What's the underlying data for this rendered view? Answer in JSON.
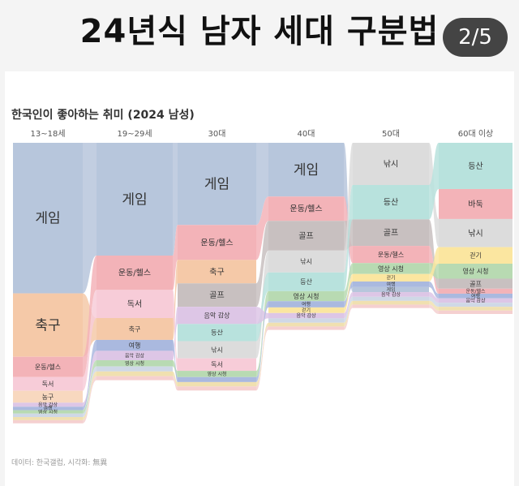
{
  "header": {
    "headline": "24년식 남자 세대 구분법",
    "counter": "2/5"
  },
  "chart_title": "한국인이 좋아하는 취미 (2024 남성)",
  "source": "데이터: 한국갤럽, 시각화: 無異",
  "chart_data": {
    "type": "ranked-stream",
    "title": "한국인이 좋아하는 취미 (2024 남성)",
    "groups": [
      "13~18세",
      "19~29세",
      "30대",
      "40대",
      "50대",
      "60대 이상"
    ],
    "colors": {
      "게임": "#b7c6dc",
      "축구": "#f5c9a8",
      "운동/헬스": "#f3b3b8",
      "독서": "#f7ccd8",
      "농구": "#f8d8bf",
      "골프": "#c8c0c0",
      "낚시": "#dcdcdc",
      "등산": "#b8e2dd",
      "바둑": "#f3b3b8",
      "영상 시청": "#b8dab2",
      "음악 감상": "#ddc6e6",
      "여행": "#aab9df",
      "걷기": "#fbe6a0",
      "기타1": "#cfd8e6",
      "기타2": "#f0e0b0",
      "기타3": "#f5d0d0"
    },
    "stacks": [
      [
        {
          "name": "게임",
          "value": 48.2,
          "label": "게임"
        },
        {
          "name": "축구",
          "value": 20.3,
          "label": "축구"
        },
        {
          "name": "운동/헬스",
          "value": 6.5,
          "label": "운동/헬스"
        },
        {
          "name": "독서",
          "value": 4.4,
          "label": "독서"
        },
        {
          "name": "농구",
          "value": 3.8,
          "label": "농구"
        },
        {
          "name": "음악 감상",
          "value": 1.3,
          "label": "음악 감상"
        },
        {
          "name": "여행",
          "value": 1.1,
          "label": "여행"
        },
        {
          "name": "영상 시청",
          "value": 1.1,
          "label": "영상 시청"
        },
        {
          "name": "기타1",
          "value": 1.1,
          "label": ""
        },
        {
          "name": "기타2",
          "value": 1.0,
          "label": ""
        },
        {
          "name": "기타3",
          "value": 1.0,
          "label": ""
        }
      ],
      [
        {
          "name": "게임",
          "value": 36.1,
          "label": "게임"
        },
        {
          "name": "운동/헬스",
          "value": 11.0,
          "label": "운동/헬스"
        },
        {
          "name": "독서",
          "value": 9.0,
          "label": "독서"
        },
        {
          "name": "축구",
          "value": 7.0,
          "label": "축구"
        },
        {
          "name": "여행",
          "value": 3.5,
          "label": "여행"
        },
        {
          "name": "음악 감상",
          "value": 3.0,
          "label": "음악 감상"
        },
        {
          "name": "영상 시청",
          "value": 2.0,
          "label": "영상 시청"
        },
        {
          "name": "기타1",
          "value": 1.6,
          "label": ""
        },
        {
          "name": "기타2",
          "value": 1.5,
          "label": ""
        },
        {
          "name": "기타3",
          "value": 1.3,
          "label": ""
        }
      ],
      [
        {
          "name": "게임",
          "value": 26.3,
          "label": "게임"
        },
        {
          "name": "운동/헬스",
          "value": 11.2,
          "label": "운동/헬스"
        },
        {
          "name": "축구",
          "value": 7.5,
          "label": "축구"
        },
        {
          "name": "골프",
          "value": 7.5,
          "label": "골프"
        },
        {
          "name": "음악 감상",
          "value": 5.5,
          "label": "음악 감상"
        },
        {
          "name": "등산",
          "value": 5.5,
          "label": "등산"
        },
        {
          "name": "낚시",
          "value": 5.5,
          "label": "낚시"
        },
        {
          "name": "독서",
          "value": 4.0,
          "label": "독서"
        },
        {
          "name": "영상 시청",
          "value": 2.0,
          "label": "영상 시청"
        },
        {
          "name": "여행",
          "value": 1.6,
          "label": ""
        },
        {
          "name": "기타2",
          "value": 1.4,
          "label": ""
        },
        {
          "name": "기타3",
          "value": 1.3,
          "label": ""
        }
      ],
      [
        {
          "name": "게임",
          "value": 17.2,
          "label": "게임"
        },
        {
          "name": "운동/헬스",
          "value": 7.8,
          "label": "운동/헬스"
        },
        {
          "name": "골프",
          "value": 9.5,
          "label": "골프"
        },
        {
          "name": "낚시",
          "value": 7.0,
          "label": "낚시"
        },
        {
          "name": "등산",
          "value": 6.0,
          "label": "등산"
        },
        {
          "name": "영상 시청",
          "value": 3.2,
          "label": "영상 시청"
        },
        {
          "name": "여행",
          "value": 2.0,
          "label": "여행"
        },
        {
          "name": "걷기",
          "value": 1.8,
          "label": "걷기"
        },
        {
          "name": "음악 감상",
          "value": 1.7,
          "label": "음악 감상"
        },
        {
          "name": "기타1",
          "value": 1.4,
          "label": ""
        },
        {
          "name": "기타2",
          "value": 1.2,
          "label": ""
        },
        {
          "name": "기타3",
          "value": 1.1,
          "label": ""
        }
      ],
      [
        {
          "name": "낚시",
          "value": 13.5,
          "label": "낚시"
        },
        {
          "name": "등산",
          "value": 11.0,
          "label": "등산"
        },
        {
          "name": "골프",
          "value": 8.5,
          "label": "골프"
        },
        {
          "name": "운동/헬스",
          "value": 5.5,
          "label": "운동/헬스"
        },
        {
          "name": "영상 시청",
          "value": 3.5,
          "label": "영상 시청"
        },
        {
          "name": "걷기",
          "value": 2.4,
          "label": "걷기"
        },
        {
          "name": "여행",
          "value": 1.8,
          "label": "여행"
        },
        {
          "name": "게임",
          "value": 1.6,
          "label": "게임"
        },
        {
          "name": "음악 감상",
          "value": 1.5,
          "label": "음악 감상"
        },
        {
          "name": "기타1",
          "value": 1.3,
          "label": ""
        },
        {
          "name": "기타2",
          "value": 1.2,
          "label": ""
        },
        {
          "name": "기타3",
          "value": 1.1,
          "label": ""
        }
      ],
      [
        {
          "name": "등산",
          "value": 14.8,
          "label": "등산"
        },
        {
          "name": "바둑",
          "value": 9.6,
          "label": "바둑"
        },
        {
          "name": "낚시",
          "value": 9.0,
          "label": "낚시"
        },
        {
          "name": "걷기",
          "value": 5.3,
          "label": "걷기"
        },
        {
          "name": "영상 시청",
          "value": 4.8,
          "label": "영상 시청"
        },
        {
          "name": "골프",
          "value": 3.2,
          "label": "골프"
        },
        {
          "name": "운동/헬스",
          "value": 1.6,
          "label": "운동/헬스"
        },
        {
          "name": "여행",
          "value": 1.5,
          "label": "여행"
        },
        {
          "name": "음악 감상",
          "value": 1.4,
          "label": "음악 감상"
        },
        {
          "name": "기타1",
          "value": 1.3,
          "label": ""
        },
        {
          "name": "기타2",
          "value": 1.2,
          "label": ""
        },
        {
          "name": "기타3",
          "value": 1.1,
          "label": ""
        }
      ]
    ]
  }
}
